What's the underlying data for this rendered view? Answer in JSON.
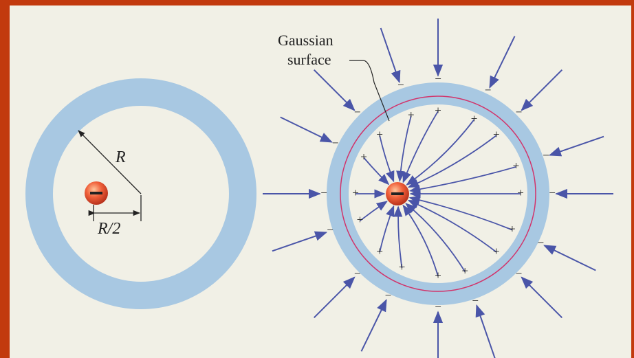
{
  "labels": {
    "radius": "R",
    "half_radius": "R/2",
    "gaussian_surface": [
      "Gaussian",
      "surface"
    ]
  },
  "charge_signs": {
    "negative": "−",
    "positive": "+"
  }
}
